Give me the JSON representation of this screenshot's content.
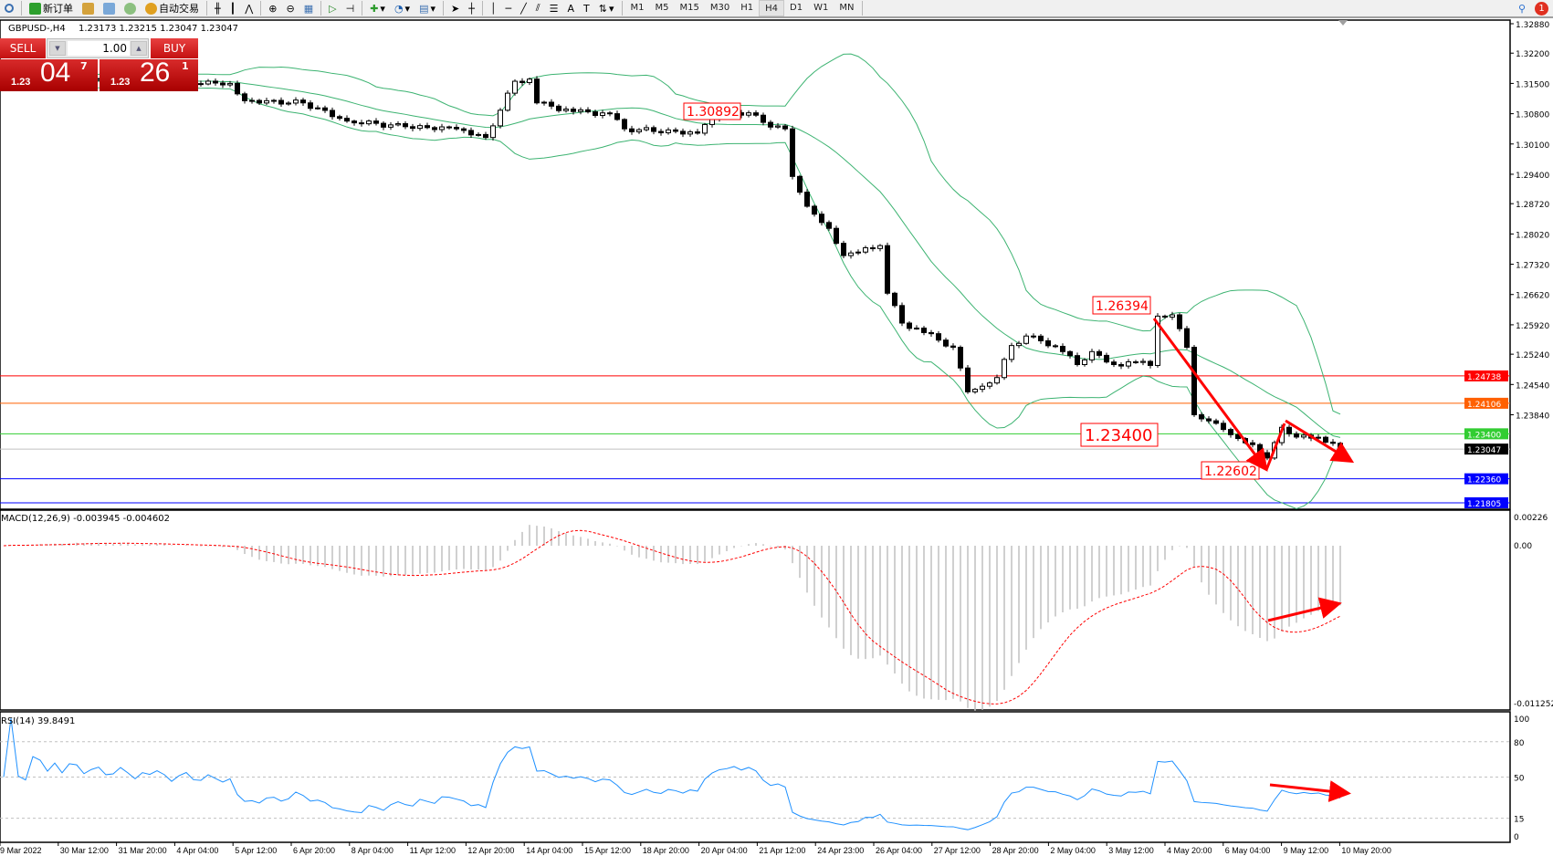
{
  "toolbar": {
    "new_order": "新订单",
    "auto_trading": "自动交易",
    "timeframes": [
      "M1",
      "M5",
      "M15",
      "M30",
      "H1",
      "H4",
      "D1",
      "W1",
      "MN"
    ],
    "active_timeframe": "H4",
    "notification_count": "1"
  },
  "chart_header": {
    "symbol": "GBPUSD-,H4",
    "ohlc": "1.23173 1.23215 1.23047 1.23047"
  },
  "trade_panel": {
    "sell_label": "SELL",
    "buy_label": "BUY",
    "lot": "1.00",
    "sell_price": {
      "prefix": "1.23",
      "big": "04",
      "sup": "7"
    },
    "buy_price": {
      "prefix": "1.23",
      "big": "26",
      "sup": "1"
    }
  },
  "indicators": {
    "macd_label": "MACD(12,26,9) -0.003945 -0.004602",
    "rsi_label": "RSI(14) 39.8491"
  },
  "annotations": {
    "high_1": "1.30892",
    "high_2": "1.26394",
    "level": "1.23400",
    "low": "1.22602"
  },
  "colors": {
    "bullish": "#ffffff",
    "bearish": "#000000",
    "bands": "#3cb371",
    "macd_hist": "#c0c0c0",
    "macd_signal": "#ff0000",
    "rsi": "#1e90ff",
    "arrow": "#ff0000"
  },
  "chart_data": {
    "type": "candlestick",
    "symbol": "GBPUSD",
    "timeframe": "H4",
    "price_axis": {
      "range": [
        1.21805,
        1.3288
      ],
      "ticks": [
        "1.32880",
        "1.32200",
        "1.31500",
        "1.30800",
        "1.30100",
        "1.29400",
        "1.28720",
        "1.28020",
        "1.27320",
        "1.26620",
        "1.25920",
        "1.25240",
        "1.24540",
        "1.23840"
      ]
    },
    "time_axis_labels": [
      "9 Mar 2022",
      "30 Mar 12:00",
      "31 Mar 20:00",
      "4 Apr 04:00",
      "5 Apr 12:00",
      "6 Apr 20:00",
      "8 Apr 04:00",
      "11 Apr 12:00",
      "12 Apr 20:00",
      "14 Apr 04:00",
      "15 Apr 12:00",
      "18 Apr 20:00",
      "20 Apr 04:00",
      "21 Apr 12:00",
      "24 Apr 23:00",
      "26 Apr 04:00",
      "27 Apr 12:00",
      "28 Apr 20:00",
      "2 May 04:00",
      "3 May 12:00",
      "4 May 20:00",
      "6 May 04:00",
      "9 May 12:00",
      "10 May 20:00"
    ],
    "close_keypoints": [
      [
        0,
        1.315
      ],
      [
        7,
        1.3158
      ],
      [
        20,
        1.3155
      ],
      [
        31,
        1.315
      ],
      [
        33,
        1.311
      ],
      [
        41,
        1.3105
      ],
      [
        47,
        1.3063
      ],
      [
        55,
        1.305
      ],
      [
        62,
        1.3045
      ],
      [
        66,
        1.3025
      ],
      [
        68,
        1.3088
      ],
      [
        70,
        1.3155
      ],
      [
        72,
        1.316
      ],
      [
        73,
        1.3105
      ],
      [
        78,
        1.3085
      ],
      [
        83,
        1.308
      ],
      [
        85,
        1.3045
      ],
      [
        95,
        1.3035
      ],
      [
        96,
        1.3055
      ],
      [
        98,
        1.3075
      ],
      [
        102,
        1.3082
      ],
      [
        104,
        1.306
      ],
      [
        107,
        1.3045
      ],
      [
        108,
        1.2935
      ],
      [
        110,
        1.2866
      ],
      [
        113,
        1.2815
      ],
      [
        115,
        1.2752
      ],
      [
        118,
        1.277
      ],
      [
        120,
        1.2775
      ],
      [
        121,
        1.2665
      ],
      [
        123,
        1.2596
      ],
      [
        126,
        1.2574
      ],
      [
        130,
        1.254
      ],
      [
        132,
        1.2437
      ],
      [
        134,
        1.245
      ],
      [
        136,
        1.247
      ],
      [
        138,
        1.2544
      ],
      [
        140,
        1.2566
      ],
      [
        142,
        1.2555
      ],
      [
        145,
        1.253
      ],
      [
        147,
        1.25
      ],
      [
        149,
        1.253
      ],
      [
        152,
        1.25
      ],
      [
        155,
        1.2505
      ],
      [
        157,
        1.2498
      ],
      [
        158,
        1.2612
      ],
      [
        160,
        1.2615
      ],
      [
        162,
        1.254
      ],
      [
        163,
        1.2384
      ],
      [
        165,
        1.237
      ],
      [
        168,
        1.2338
      ],
      [
        171,
        1.2315
      ],
      [
        173,
        1.2284
      ],
      [
        175,
        1.2355
      ],
      [
        176,
        1.234
      ],
      [
        179,
        1.233
      ],
      [
        182,
        1.2318
      ],
      [
        183,
        1.23047
      ]
    ],
    "horizontal_lines": [
      {
        "price": "1.24738",
        "color": "#ff0000"
      },
      {
        "price": "1.24106",
        "color": "#ff6000"
      },
      {
        "price": "1.23400",
        "color": "#32cd32"
      },
      {
        "price": "1.23047",
        "color": "#000000",
        "line": "#c0c0c0"
      },
      {
        "price": "1.22360",
        "color": "#0000ff"
      },
      {
        "price": "1.21805",
        "color": "#0000ff"
      }
    ],
    "bollinger": {
      "period": 20,
      "deviation": 2
    },
    "macd": {
      "fast": 12,
      "slow": 26,
      "signal": 9,
      "axis_ticks": [
        "0.00226",
        "0.00",
        "-0.011252"
      ],
      "range": [
        -0.011252,
        0.00226
      ]
    },
    "rsi": {
      "period": 14,
      "levels": [
        80,
        50,
        15
      ],
      "axis_ticks": [
        "100",
        "80",
        "50",
        "15",
        "0"
      ]
    }
  }
}
